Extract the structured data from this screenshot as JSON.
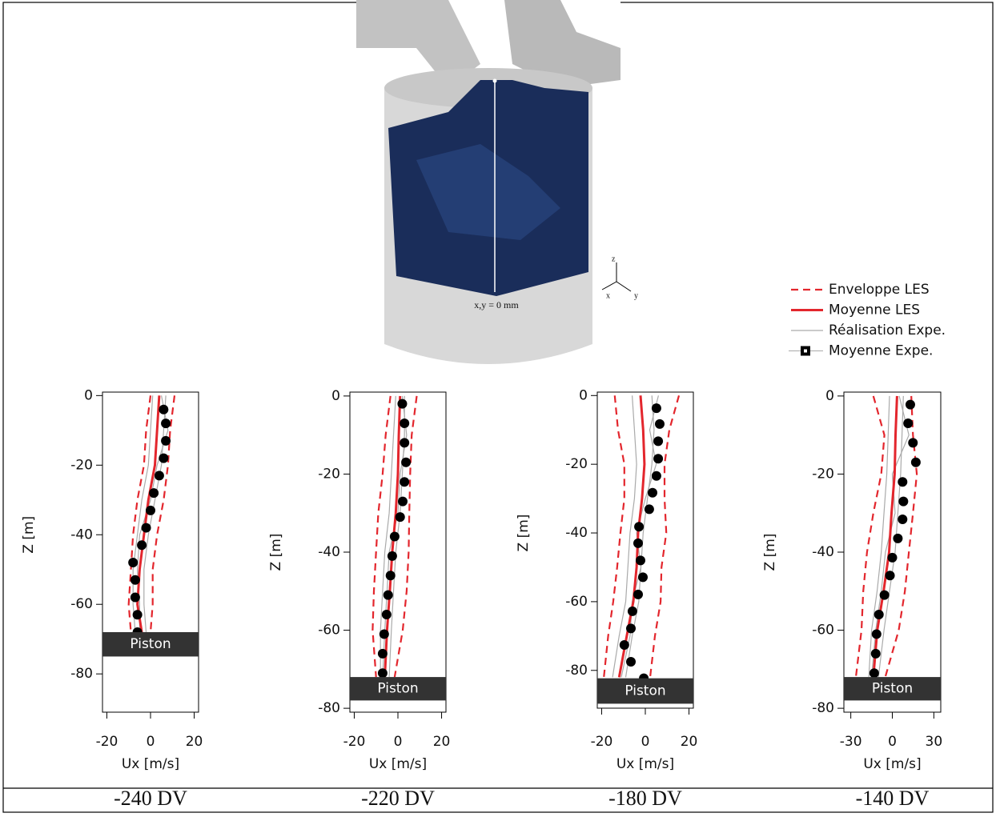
{
  "render": {
    "label": "x,y = 0 mm",
    "axes": [
      "z",
      "x",
      "y"
    ]
  },
  "legend": [
    {
      "name": "Enveloppe LES",
      "color": "#e3262d",
      "style": "dashed"
    },
    {
      "name": "Moyenne LES",
      "color": "#e3262d",
      "style": "solid"
    },
    {
      "name": "Réalisation Expe.",
      "color": "#aaaaaa",
      "style": "thin"
    },
    {
      "name": "Moyenne Expe.",
      "color": "#000000",
      "style": "marker"
    }
  ],
  "chart_data": [
    {
      "type": "line",
      "caption": "-240 DV",
      "xlabel": "Ux [m/s]",
      "ylabel": "Z [m]",
      "xlim": [
        -22,
        22
      ],
      "ylim": [
        -91,
        1
      ],
      "xticks": [
        -20,
        0,
        20
      ],
      "yticks": [
        0,
        -20,
        -40,
        -60,
        -80
      ],
      "piston": [
        -75,
        -68
      ],
      "piston_label": "Piston",
      "z": [
        0,
        -10,
        -20,
        -30,
        -40,
        -50,
        -60,
        -68
      ],
      "envelope_lower": [
        0,
        -2,
        -3,
        -6,
        -8,
        -9,
        -10,
        -9
      ],
      "envelope_upper": [
        11,
        9,
        8,
        6,
        3,
        1,
        1,
        0
      ],
      "les_mean": [
        4,
        3,
        2,
        -1,
        -3,
        -5,
        -6,
        -4
      ],
      "realisations": [
        [
          7,
          6,
          5,
          2,
          -1,
          -3,
          -3,
          -2
        ],
        [
          1,
          0,
          -1,
          -4,
          -6,
          -8,
          -8,
          -7
        ],
        [
          5,
          8,
          3,
          0,
          -5,
          -6,
          -5,
          -5
        ]
      ],
      "expe_z": [
        -4,
        -8,
        -13,
        -18,
        -23,
        -28,
        -33,
        -38,
        -43,
        -48,
        -53,
        -58,
        -63,
        -68
      ],
      "expe_mean": [
        6,
        7,
        7,
        6,
        4,
        1.5,
        0,
        -2,
        -4,
        -8,
        -7,
        -7,
        -6,
        -6
      ]
    },
    {
      "type": "line",
      "caption": "-220 DV",
      "xlabel": "Ux [m/s]",
      "ylabel": "Z [m]",
      "xlim": [
        -22,
        22
      ],
      "ylim": [
        -81,
        1
      ],
      "xticks": [
        -20,
        0,
        20
      ],
      "yticks": [
        0,
        -20,
        -40,
        -60,
        -80
      ],
      "piston": [
        -78,
        -72
      ],
      "piston_label": "Piston",
      "z": [
        0,
        -10,
        -20,
        -30,
        -40,
        -50,
        -60,
        -72
      ],
      "envelope_lower": [
        -3.4,
        -5.6,
        -7,
        -9,
        -10,
        -11,
        -11.6,
        -10
      ],
      "envelope_upper": [
        8.6,
        6.3,
        5.6,
        5.2,
        4.9,
        4,
        2.2,
        -1.5
      ],
      "les_mean": [
        1,
        0.4,
        0,
        -1,
        -2.6,
        -3.7,
        -5,
        -6
      ],
      "realisations": [
        [
          3,
          3,
          2,
          1,
          -1,
          -2,
          -3,
          -4
        ],
        [
          -1,
          -2,
          -3,
          -4,
          -6,
          -7,
          -8,
          -8
        ],
        [
          2,
          4,
          1,
          0,
          -4,
          -5,
          -6,
          -7
        ]
      ],
      "expe_z": [
        -2,
        -7,
        -12,
        -17,
        -22,
        -27,
        -31,
        -36,
        -41,
        -46,
        -51,
        -56,
        -61,
        -66,
        -71
      ],
      "expe_mean": [
        2,
        3,
        3,
        3.7,
        3,
        2.2,
        1,
        -1.5,
        -2.6,
        -3.4,
        -4.5,
        -5.2,
        -6.3,
        -7,
        -7
      ]
    },
    {
      "type": "line",
      "caption": "-180 DV",
      "xlabel": "Ux [m/s]",
      "ylabel": "Z [m]",
      "xlim": [
        -22,
        22
      ],
      "ylim": [
        -91,
        1
      ],
      "xticks": [
        -20,
        0,
        20
      ],
      "yticks": [
        0,
        -20,
        -40,
        -60,
        -80
      ],
      "piston": [
        -89.7,
        -82.3
      ],
      "piston_label": "Piston",
      "z": [
        0,
        -10,
        -20,
        -30,
        -40,
        -50,
        -60,
        -70,
        -82
      ],
      "envelope_lower": [
        -14,
        -12.5,
        -9.6,
        -9.6,
        -11.4,
        -12.9,
        -14.7,
        -17,
        -19
      ],
      "envelope_upper": [
        15.4,
        11,
        8.8,
        8.8,
        9.6,
        7.4,
        7,
        4.4,
        2.2
      ],
      "les_mean": [
        -2.2,
        -1,
        -0.4,
        -1.5,
        -3.3,
        -4,
        -5.5,
        -8.5,
        -12
      ],
      "realisations": [
        [
          3,
          4,
          3,
          1,
          -1,
          -2,
          -3,
          -6,
          -9
        ],
        [
          -6,
          -5,
          -4,
          -5,
          -7,
          -8,
          -9,
          -12,
          -15
        ],
        [
          6,
          2,
          5,
          0,
          -4,
          -2,
          -6,
          -7,
          -11
        ]
      ],
      "expe_z": [
        -3.7,
        -8.3,
        -13.3,
        -18.4,
        -23.4,
        -28.3,
        -33.1,
        -38.2,
        -43,
        -48,
        -52.9,
        -57.9,
        -62.8,
        -67.8,
        -72.6,
        -77.5,
        -82.3
      ],
      "expe_mean": [
        5.1,
        6.6,
        5.9,
        5.9,
        5.1,
        3.3,
        1.8,
        -2.9,
        -3.3,
        -2.2,
        -1.1,
        -3.3,
        -5.9,
        -6.6,
        -9.6,
        -6.6,
        -0.7
      ]
    },
    {
      "type": "line",
      "caption": "-140 DV",
      "xlabel": "Ux [m/s]",
      "ylabel": "Z [m]",
      "xlim": [
        -35,
        35
      ],
      "ylim": [
        -81,
        1
      ],
      "xticks": [
        -30,
        0,
        30
      ],
      "yticks": [
        0,
        -20,
        -40,
        -60,
        -80
      ],
      "piston": [
        -78,
        -72
      ],
      "piston_label": "Piston",
      "z": [
        0,
        -10,
        -20,
        -30,
        -40,
        -50,
        -60,
        -72
      ],
      "envelope_lower": [
        -13.7,
        -5.7,
        -8,
        -13.7,
        -18.3,
        -21,
        -22.3,
        -26.3
      ],
      "envelope_upper": [
        13.7,
        14.9,
        17.7,
        14.9,
        12,
        9.1,
        4.6,
        -5.1
      ],
      "les_mean": [
        3.4,
        2.3,
        1.7,
        -0.6,
        -2.3,
        -6.3,
        -10.9,
        -13.7
      ],
      "realisations": [
        [
          8,
          7,
          6,
          4,
          2,
          -2,
          -6,
          -10
        ],
        [
          -2,
          -3,
          -4,
          -6,
          -8,
          -11,
          -15,
          -17
        ],
        [
          5,
          12,
          0,
          2,
          -5,
          -8,
          -12,
          -15
        ]
      ],
      "expe_z": [
        -2.2,
        -7,
        -12,
        -17,
        -22,
        -27,
        -31.6,
        -36.5,
        -41.4,
        -46,
        -51,
        -56,
        -61,
        -66,
        -71
      ],
      "expe_mean": [
        13,
        11.4,
        14.9,
        17,
        7.4,
        8,
        7.4,
        4,
        0,
        -1.7,
        -5.7,
        -9.7,
        -11.4,
        -12,
        -13.1
      ]
    }
  ]
}
